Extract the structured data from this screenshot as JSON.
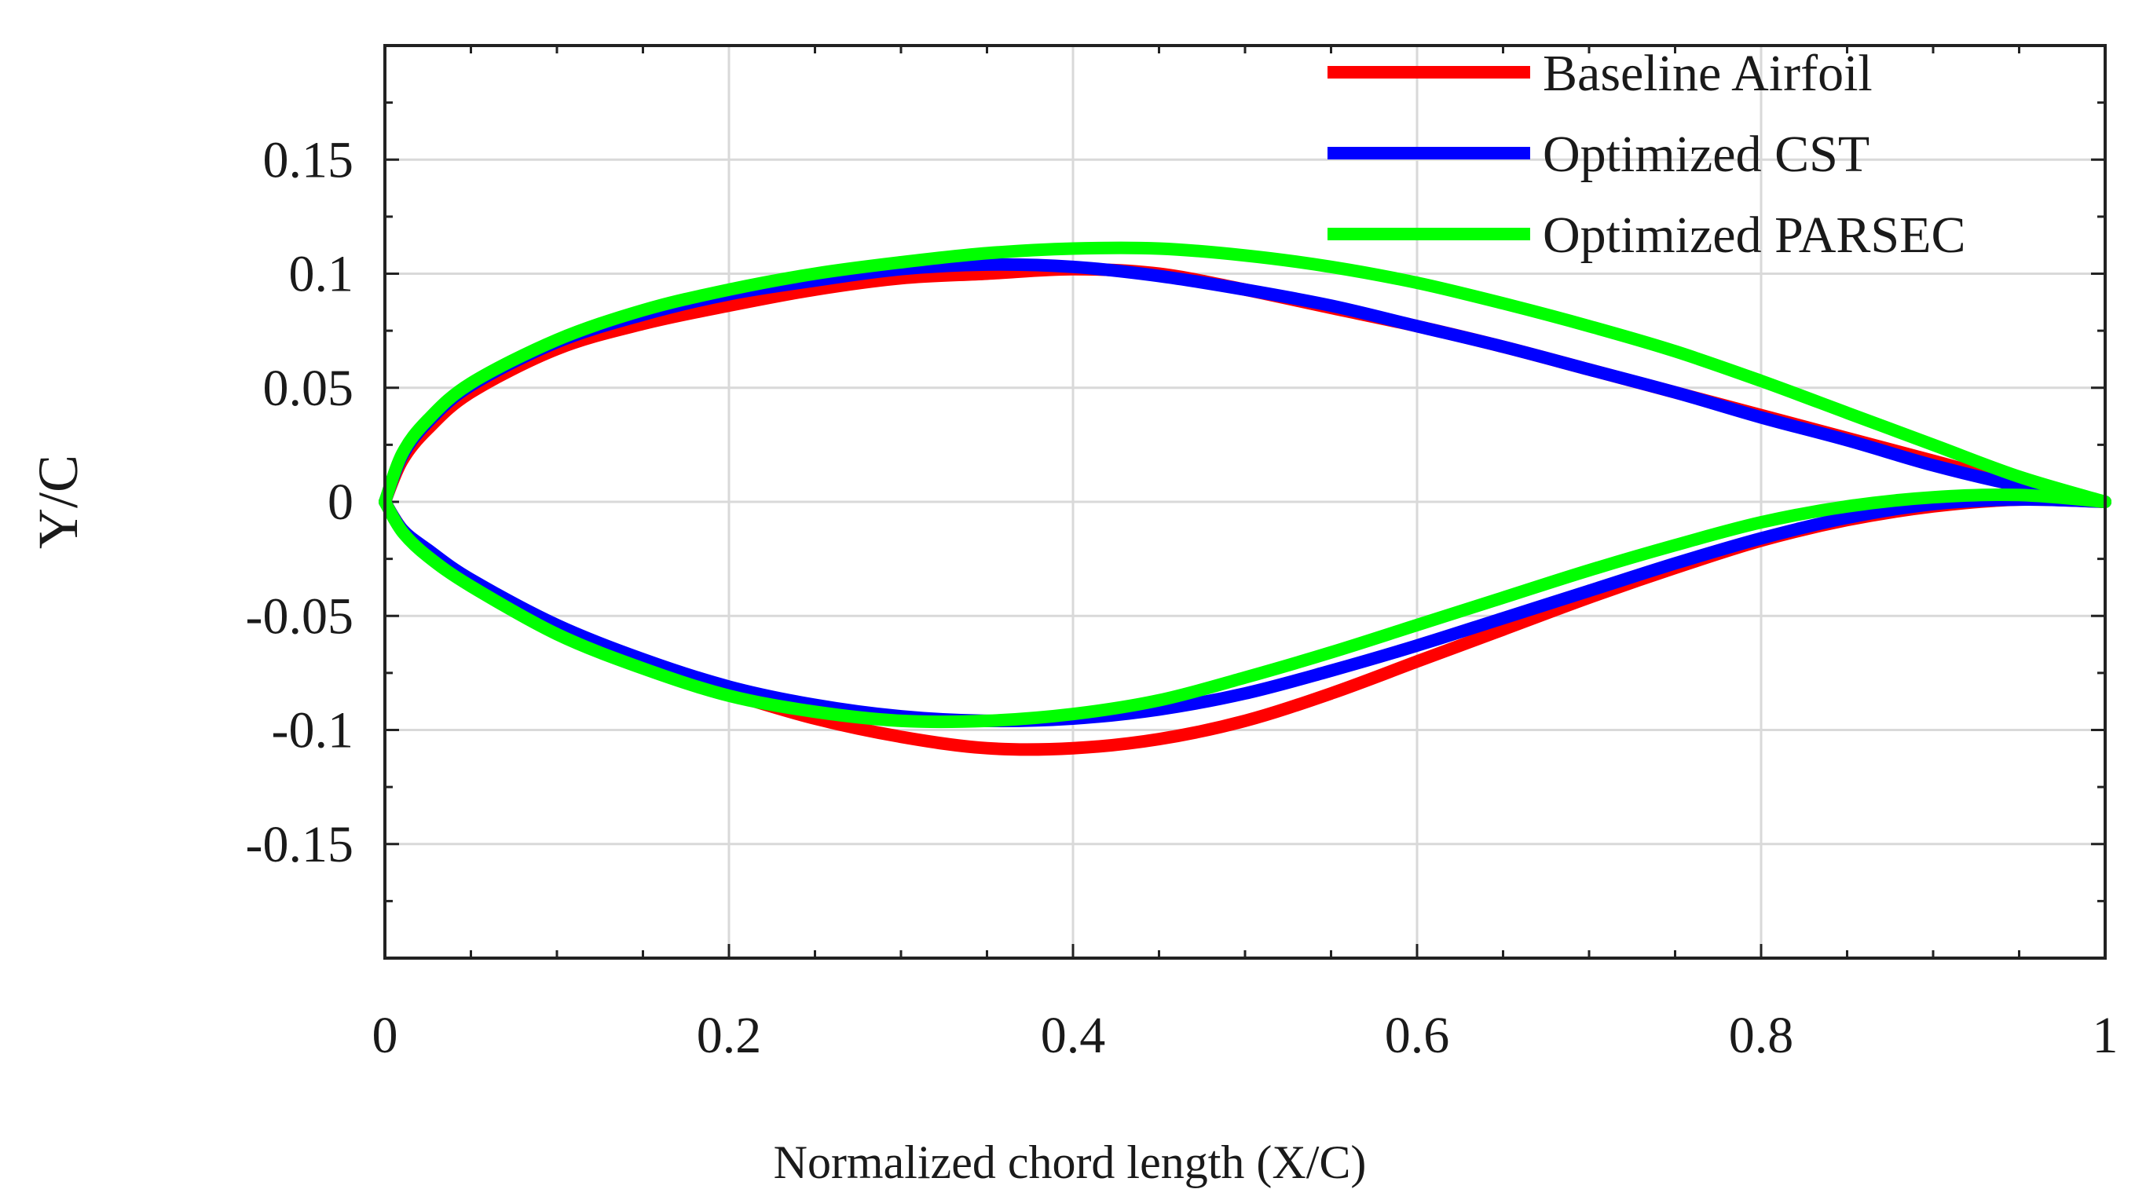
{
  "chart_data": {
    "type": "line",
    "title": "",
    "xlabel": "Normalized chord length (X/C)",
    "ylabel": "Y/C",
    "xlim": [
      0,
      1
    ],
    "ylim": [
      -0.2,
      0.2
    ],
    "xticks": [
      0,
      0.2,
      0.4,
      0.6,
      0.8,
      1
    ],
    "xtick_labels": [
      "0",
      "0.2",
      "0.4",
      "0.6",
      "0.8",
      "1"
    ],
    "yticks": [
      0.15,
      0.1,
      0.05,
      0,
      -0.05,
      -0.1,
      -0.15
    ],
    "ytick_labels": [
      "0.15",
      "0.1",
      "0.05",
      "0",
      "-0.05",
      "-0.1",
      "-0.15"
    ],
    "grid": true,
    "legend_position": "top-right",
    "series": [
      {
        "name": "Baseline Airfoil",
        "color": "#ff0000",
        "upper": {
          "x": [
            0,
            0.01,
            0.025,
            0.05,
            0.1,
            0.15,
            0.2,
            0.25,
            0.3,
            0.35,
            0.4,
            0.45,
            0.5,
            0.55,
            0.6,
            0.65,
            0.7,
            0.75,
            0.8,
            0.85,
            0.9,
            0.95,
            1.0
          ],
          "y": [
            0,
            0.018,
            0.032,
            0.048,
            0.067,
            0.078,
            0.086,
            0.093,
            0.098,
            0.1,
            0.102,
            0.1,
            0.093,
            0.085,
            0.077,
            0.068,
            0.058,
            0.048,
            0.038,
            0.028,
            0.018,
            0.008,
            0
          ]
        },
        "lower": {
          "x": [
            0,
            0.01,
            0.025,
            0.05,
            0.1,
            0.15,
            0.2,
            0.25,
            0.3,
            0.35,
            0.4,
            0.45,
            0.5,
            0.55,
            0.6,
            0.65,
            0.7,
            0.75,
            0.8,
            0.85,
            0.9,
            0.95,
            1.0
          ],
          "y": [
            0,
            -0.012,
            -0.022,
            -0.036,
            -0.056,
            -0.072,
            -0.084,
            -0.095,
            -0.103,
            -0.108,
            -0.108,
            -0.104,
            -0.096,
            -0.084,
            -0.07,
            -0.056,
            -0.042,
            -0.029,
            -0.017,
            -0.008,
            -0.002,
            0.001,
            0
          ]
        }
      },
      {
        "name": "Optimized CST",
        "color": "#0000ff",
        "upper": {
          "x": [
            0,
            0.01,
            0.025,
            0.05,
            0.1,
            0.15,
            0.2,
            0.25,
            0.3,
            0.35,
            0.4,
            0.45,
            0.5,
            0.55,
            0.6,
            0.65,
            0.7,
            0.75,
            0.8,
            0.85,
            0.9,
            0.95,
            1.0
          ],
          "y": [
            0,
            0.02,
            0.035,
            0.051,
            0.07,
            0.082,
            0.091,
            0.097,
            0.102,
            0.104,
            0.103,
            0.099,
            0.093,
            0.086,
            0.077,
            0.068,
            0.058,
            0.048,
            0.037,
            0.027,
            0.016,
            0.007,
            0
          ]
        },
        "lower": {
          "x": [
            0,
            0.01,
            0.025,
            0.05,
            0.1,
            0.15,
            0.2,
            0.25,
            0.3,
            0.35,
            0.4,
            0.45,
            0.5,
            0.55,
            0.6,
            0.65,
            0.7,
            0.75,
            0.8,
            0.85,
            0.9,
            0.95,
            1.0
          ],
          "y": [
            0,
            -0.012,
            -0.021,
            -0.034,
            -0.054,
            -0.069,
            -0.081,
            -0.089,
            -0.094,
            -0.096,
            -0.095,
            -0.091,
            -0.084,
            -0.074,
            -0.063,
            -0.051,
            -0.039,
            -0.027,
            -0.016,
            -0.007,
            -0.001,
            0.001,
            0
          ]
        }
      },
      {
        "name": "Optimized PARSEC",
        "color": "#00ff00",
        "upper": {
          "x": [
            0,
            0.01,
            0.025,
            0.05,
            0.1,
            0.15,
            0.2,
            0.25,
            0.3,
            0.35,
            0.4,
            0.45,
            0.5,
            0.55,
            0.6,
            0.65,
            0.7,
            0.75,
            0.8,
            0.85,
            0.9,
            0.95,
            1.0
          ],
          "y": [
            0,
            0.021,
            0.036,
            0.052,
            0.071,
            0.084,
            0.093,
            0.1,
            0.105,
            0.109,
            0.111,
            0.111,
            0.108,
            0.103,
            0.096,
            0.087,
            0.077,
            0.066,
            0.053,
            0.039,
            0.025,
            0.011,
            0
          ]
        },
        "lower": {
          "x": [
            0,
            0.01,
            0.025,
            0.05,
            0.1,
            0.15,
            0.2,
            0.25,
            0.3,
            0.35,
            0.4,
            0.45,
            0.5,
            0.55,
            0.6,
            0.65,
            0.7,
            0.75,
            0.8,
            0.85,
            0.9,
            0.95,
            1.0
          ],
          "y": [
            0,
            -0.013,
            -0.024,
            -0.037,
            -0.058,
            -0.073,
            -0.085,
            -0.092,
            -0.096,
            -0.096,
            -0.093,
            -0.087,
            -0.077,
            -0.066,
            -0.054,
            -0.042,
            -0.03,
            -0.019,
            -0.009,
            -0.002,
            0.002,
            0.003,
            0
          ]
        }
      }
    ]
  }
}
